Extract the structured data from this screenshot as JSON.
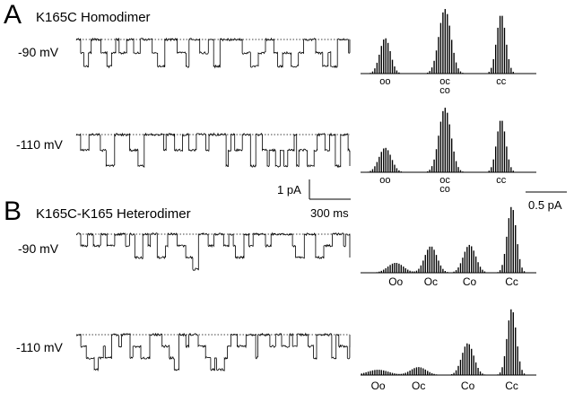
{
  "panels": [
    {
      "letter": "A",
      "title": "K165C Homodimer",
      "rows": [
        {
          "voltage": "-90 mV",
          "peak_labels": [
            [
              "oo"
            ],
            [
              "oc",
              "co"
            ],
            [
              "cc"
            ]
          ],
          "hist_gaussians": [
            {
              "center": 0.14,
              "height": 0.55,
              "width": 0.03
            },
            {
              "center": 0.48,
              "height": 1.0,
              "width": 0.034
            },
            {
              "center": 0.8,
              "height": 0.92,
              "width": 0.026
            }
          ],
          "trace_states": 3,
          "trace_seed": 11
        },
        {
          "voltage": "-110 mV",
          "peak_labels": [
            [
              "oo"
            ],
            [
              "oc",
              "co"
            ],
            [
              "cc"
            ]
          ],
          "hist_gaussians": [
            {
              "center": 0.14,
              "height": 0.38,
              "width": 0.035
            },
            {
              "center": 0.48,
              "height": 1.0,
              "width": 0.034
            },
            {
              "center": 0.8,
              "height": 0.82,
              "width": 0.026
            }
          ],
          "trace_states": 3,
          "trace_seed": 23
        }
      ]
    },
    {
      "letter": "B",
      "title": "K165C-K165 Heterodimer",
      "rows": [
        {
          "voltage": "-90 mV",
          "peak_labels": [
            [
              "Oo"
            ],
            [
              "Oc"
            ],
            [
              "Co"
            ],
            [
              "Cc"
            ]
          ],
          "hist_gaussians": [
            {
              "center": 0.2,
              "height": 0.15,
              "width": 0.045
            },
            {
              "center": 0.4,
              "height": 0.4,
              "width": 0.035
            },
            {
              "center": 0.62,
              "height": 0.42,
              "width": 0.035
            },
            {
              "center": 0.86,
              "height": 1.0,
              "width": 0.026
            }
          ],
          "trace_states": 4,
          "trace_seed": 37
        },
        {
          "voltage": "-110 mV",
          "peak_labels": [
            [
              "Oo"
            ],
            [
              "Oc"
            ],
            [
              "Co"
            ],
            [
              "Cc"
            ]
          ],
          "hist_gaussians": [
            {
              "center": 0.1,
              "height": 0.08,
              "width": 0.06
            },
            {
              "center": 0.33,
              "height": 0.12,
              "width": 0.045
            },
            {
              "center": 0.61,
              "height": 0.48,
              "width": 0.034
            },
            {
              "center": 0.86,
              "height": 1.0,
              "width": 0.026
            }
          ],
          "trace_states": 4,
          "trace_seed": 51
        }
      ]
    }
  ],
  "scale_bars": {
    "current": "1 pA",
    "time": "300 ms",
    "histogram": "0.5 pA"
  }
}
